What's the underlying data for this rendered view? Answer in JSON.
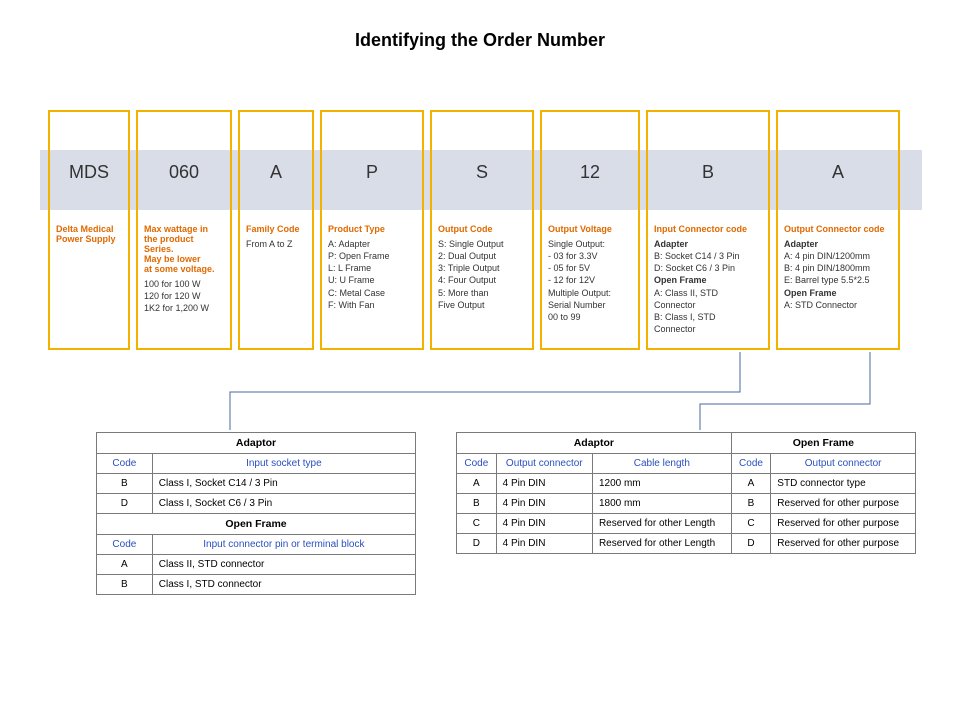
{
  "title": "Identifying the Order Number",
  "colors": {
    "seg_border": "#f3b200",
    "band_bg": "#d9dde8",
    "accent_text": "#e06a00",
    "link_blue": "#2a4fbf",
    "connector": "#4a6aa0",
    "table_border": "#7a7a7a"
  },
  "segments": [
    {
      "w": 82,
      "code": "MDS",
      "label": "Delta Medical\nPower Supply",
      "desc": ""
    },
    {
      "w": 96,
      "code": "060",
      "label": "Max wattage in\nthe product\nSeries.\nMay be lower\nat some voltage.",
      "desc": "100 for 100 W\n120 for 120 W\n1K2 for 1,200 W"
    },
    {
      "w": 76,
      "code": "A",
      "label": "Family Code",
      "desc": "From A to Z"
    },
    {
      "w": 104,
      "code": "P",
      "label": "Product Type",
      "desc": "A: Adapter\nP: Open Frame\nL: L Frame\nU: U Frame\nC: Metal Case\nF: With Fan"
    },
    {
      "w": 104,
      "code": "S",
      "label": "Output Code",
      "desc": "S: Single Output\n2: Dual Output\n3: Triple Output\n4: Four Output\n5: More than\n    Five Output"
    },
    {
      "w": 100,
      "code": "12",
      "label": "Output Voltage",
      "desc": "Single Output:\n  - 03 for 3.3V\n  - 05 for 5V\n  - 12 for 12V\nMultiple Output:\nSerial Number\n00 to 99"
    },
    {
      "w": 124,
      "code": "B",
      "label": "Input Connector code",
      "desc": "Adapter|bold\nB: Socket C14 / 3 Pin\nD: Socket C6 / 3 Pin\nOpen Frame|bold\nA: Class II, STD\nConnector\nB: Class I, STD\nConnector"
    },
    {
      "w": 124,
      "code": "A",
      "label": "Output Connector code",
      "desc": "Adapter|bold\nA: 4 pin DIN/1200mm\nB: 4 pin DIN/1800mm\nE: Barrel type 5.5*2.5\nOpen Frame|bold\nA: STD Connector"
    }
  ],
  "leftTable": {
    "sections": [
      {
        "title": "Adaptor",
        "cols": [
          "Code",
          "Input socket type"
        ],
        "rows": [
          [
            "B",
            "Class I, Socket C14 / 3 Pin"
          ],
          [
            "D",
            "Class I, Socket C6 / 3 Pin"
          ]
        ]
      },
      {
        "title": "Open Frame",
        "cols": [
          "Code",
          "Input connector pin or terminal block"
        ],
        "rows": [
          [
            "A",
            "Class II, STD connector"
          ],
          [
            "B",
            "Class I, STD connector"
          ]
        ]
      }
    ]
  },
  "rightTable": {
    "header_adaptor": "Adaptor",
    "header_openframe": "Open Frame",
    "cols_left": [
      "Code",
      "Output connector",
      "Cable length"
    ],
    "cols_right": [
      "Code",
      "Output connector"
    ],
    "rows": [
      [
        "A",
        "4 Pin DIN",
        "1200 mm",
        "A",
        "STD connector type"
      ],
      [
        "B",
        "4 Pin DIN",
        "1800 mm",
        "B",
        "Reserved for other purpose"
      ],
      [
        "C",
        "4 Pin DIN",
        "Reserved for other Length",
        "C",
        "Reserved for other purpose"
      ],
      [
        "D",
        "4 Pin DIN",
        "Reserved for other Length",
        "D",
        "Reserved for other purpose"
      ]
    ]
  }
}
